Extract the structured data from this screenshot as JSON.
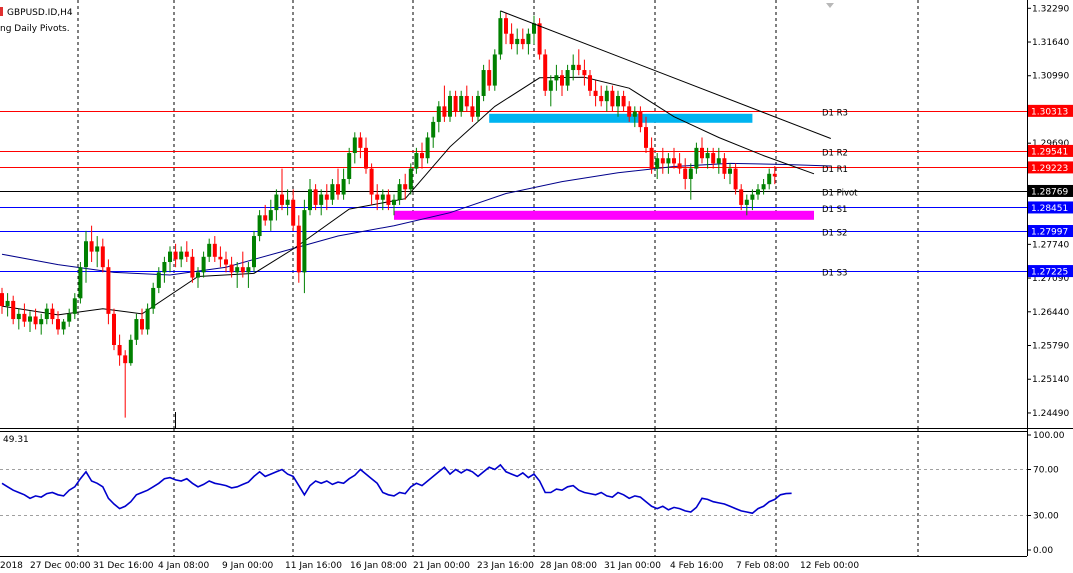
{
  "chart_data": {
    "type": "candlestick",
    "symbol_title": "GBPUSD.ID,H4",
    "indicator_title": "ng Daily Pivots.",
    "price_axis": {
      "ylim": [
        1.242,
        1.3245
      ],
      "ticks": [
        "1.32290",
        "1.31640",
        "1.30990",
        "1.30313",
        "1.29690",
        "1.29541",
        "1.29223",
        "1.28769",
        "1.28451",
        "1.27997",
        "1.27740",
        "1.27225",
        "1.27090",
        "1.26440",
        "1.25790",
        "1.25140",
        "1.24490"
      ]
    },
    "x_labels": [
      "2018",
      "27 Dec 00:00",
      "31 Dec 16:00",
      "4 Jan 08:00",
      "9 Jan 00:00",
      "11 Jan 16:00",
      "16 Jan 08:00",
      "21 Jan 00:00",
      "23 Jan 16:00",
      "28 Jan 08:00",
      "31 Jan 00:00",
      "4 Feb 16:00",
      "7 Feb 08:00",
      "12 Feb 00:00"
    ],
    "pivots": [
      {
        "name": "D1 R3",
        "value": 1.30313,
        "color": "#ff0000",
        "tag": "1.30313"
      },
      {
        "name": "D1 R2",
        "value": 1.29541,
        "color": "#ff0000",
        "tag": "1.29541"
      },
      {
        "name": "D1 R1",
        "value": 1.29223,
        "color": "#ff0000",
        "tag": "1.29223"
      },
      {
        "name": "D1 Pivot",
        "value": 1.28769,
        "color": "#000000",
        "tag": "1.28769"
      },
      {
        "name": "D1 S1",
        "value": 1.28451,
        "color": "#0000ff",
        "tag": "1.28451"
      },
      {
        "name": "D1 S2",
        "value": 1.27997,
        "color": "#0000ff",
        "tag": "1.27997"
      },
      {
        "name": "D1 S3",
        "value": 1.27225,
        "color": "#0000ff",
        "tag": "1.27225"
      }
    ],
    "zones": [
      {
        "name": "resistance-zone",
        "color": "#00b4f0",
        "price": 1.3017,
        "from_candle": 87,
        "to_candle": 134
      },
      {
        "name": "support-zone",
        "color": "#ff00ff",
        "price": 1.283,
        "from_candle": 70,
        "to_candle": 145
      }
    ],
    "trendline": {
      "from": {
        "candle": 89,
        "price": 1.3224
      },
      "to": {
        "candle": 148,
        "price": 1.2978
      }
    },
    "candles_ohlc": [
      [
        1.268,
        1.269,
        1.264,
        1.2655
      ],
      [
        1.2655,
        1.268,
        1.2635,
        1.2665
      ],
      [
        1.2665,
        1.2675,
        1.262,
        1.263
      ],
      [
        1.263,
        1.265,
        1.261,
        1.264
      ],
      [
        1.264,
        1.266,
        1.2615,
        1.2625
      ],
      [
        1.2625,
        1.2645,
        1.2605,
        1.2635
      ],
      [
        1.2635,
        1.265,
        1.261,
        1.262
      ],
      [
        1.262,
        1.264,
        1.26,
        1.263
      ],
      [
        1.263,
        1.266,
        1.262,
        1.265
      ],
      [
        1.265,
        1.266,
        1.262,
        1.263
      ],
      [
        1.263,
        1.2645,
        1.26,
        1.261
      ],
      [
        1.261,
        1.263,
        1.26,
        1.2625
      ],
      [
        1.2625,
        1.265,
        1.2615,
        1.264
      ],
      [
        1.264,
        1.268,
        1.263,
        1.267
      ],
      [
        1.267,
        1.274,
        1.266,
        1.273
      ],
      [
        1.273,
        1.28,
        1.27,
        1.278
      ],
      [
        1.278,
        1.281,
        1.274,
        1.276
      ],
      [
        1.276,
        1.279,
        1.273,
        1.277
      ],
      [
        1.277,
        1.2785,
        1.272,
        1.273
      ],
      [
        1.273,
        1.2745,
        1.262,
        1.264
      ],
      [
        1.264,
        1.265,
        1.257,
        1.258
      ],
      [
        1.258,
        1.26,
        1.254,
        1.256
      ],
      [
        1.256,
        1.257,
        1.244,
        1.2545
      ],
      [
        1.2545,
        1.26,
        1.254,
        1.259
      ],
      [
        1.259,
        1.264,
        1.258,
        1.263
      ],
      [
        1.263,
        1.265,
        1.26,
        1.261
      ],
      [
        1.261,
        1.266,
        1.26,
        1.265
      ],
      [
        1.265,
        1.27,
        1.264,
        1.269
      ],
      [
        1.269,
        1.273,
        1.268,
        1.272
      ],
      [
        1.272,
        1.275,
        1.27,
        1.274
      ],
      [
        1.274,
        1.277,
        1.272,
        1.276
      ],
      [
        1.276,
        1.2775,
        1.273,
        1.2745
      ],
      [
        1.2745,
        1.277,
        1.273,
        1.276
      ],
      [
        1.276,
        1.278,
        1.274,
        1.275
      ],
      [
        1.275,
        1.2765,
        1.27,
        1.271
      ],
      [
        1.271,
        1.273,
        1.269,
        1.272
      ],
      [
        1.272,
        1.276,
        1.271,
        1.275
      ],
      [
        1.275,
        1.2785,
        1.274,
        1.2775
      ],
      [
        1.2775,
        1.279,
        1.274,
        1.275
      ],
      [
        1.275,
        1.277,
        1.273,
        1.2745
      ],
      [
        1.2745,
        1.276,
        1.272,
        1.2735
      ],
      [
        1.2735,
        1.275,
        1.271,
        1.272
      ],
      [
        1.272,
        1.274,
        1.269,
        1.273
      ],
      [
        1.273,
        1.276,
        1.271,
        1.272
      ],
      [
        1.272,
        1.274,
        1.269,
        1.273
      ],
      [
        1.273,
        1.28,
        1.272,
        1.279
      ],
      [
        1.279,
        1.284,
        1.278,
        1.283
      ],
      [
        1.283,
        1.285,
        1.281,
        1.282
      ],
      [
        1.282,
        1.286,
        1.28,
        1.284
      ],
      [
        1.284,
        1.288,
        1.282,
        1.287
      ],
      [
        1.287,
        1.292,
        1.284,
        1.285
      ],
      [
        1.285,
        1.288,
        1.283,
        1.286
      ],
      [
        1.286,
        1.288,
        1.28,
        1.281
      ],
      [
        1.281,
        1.283,
        1.27,
        1.272
      ],
      [
        1.272,
        1.286,
        1.268,
        1.284
      ],
      [
        1.284,
        1.29,
        1.283,
        1.288
      ],
      [
        1.288,
        1.289,
        1.284,
        1.285
      ],
      [
        1.285,
        1.288,
        1.283,
        1.287
      ],
      [
        1.287,
        1.289,
        1.284,
        1.286
      ],
      [
        1.286,
        1.29,
        1.285,
        1.289
      ],
      [
        1.289,
        1.292,
        1.286,
        1.287
      ],
      [
        1.287,
        1.292,
        1.286,
        1.29
      ],
      [
        1.29,
        1.296,
        1.289,
        1.295
      ],
      [
        1.295,
        1.299,
        1.293,
        1.298
      ],
      [
        1.298,
        1.299,
        1.294,
        1.296
      ],
      [
        1.296,
        1.298,
        1.291,
        1.292
      ],
      [
        1.292,
        1.293,
        1.285,
        1.287
      ],
      [
        1.287,
        1.289,
        1.284,
        1.286
      ],
      [
        1.286,
        1.288,
        1.284,
        1.287
      ],
      [
        1.287,
        1.288,
        1.284,
        1.285
      ],
      [
        1.285,
        1.287,
        1.283,
        1.286
      ],
      [
        1.286,
        1.29,
        1.285,
        1.289
      ],
      [
        1.289,
        1.291,
        1.286,
        1.288
      ],
      [
        1.288,
        1.293,
        1.287,
        1.292
      ],
      [
        1.292,
        1.296,
        1.291,
        1.295
      ],
      [
        1.295,
        1.297,
        1.292,
        1.294
      ],
      [
        1.294,
        1.299,
        1.293,
        1.298
      ],
      [
        1.298,
        1.302,
        1.296,
        1.301
      ],
      [
        1.301,
        1.305,
        1.299,
        1.304
      ],
      [
        1.304,
        1.308,
        1.301,
        1.302
      ],
      [
        1.302,
        1.307,
        1.301,
        1.306
      ],
      [
        1.306,
        1.307,
        1.302,
        1.303
      ],
      [
        1.303,
        1.307,
        1.302,
        1.306
      ],
      [
        1.306,
        1.308,
        1.303,
        1.304
      ],
      [
        1.304,
        1.306,
        1.301,
        1.302
      ],
      [
        1.302,
        1.307,
        1.301,
        1.306
      ],
      [
        1.306,
        1.312,
        1.305,
        1.311
      ],
      [
        1.311,
        1.313,
        1.307,
        1.308
      ],
      [
        1.308,
        1.315,
        1.307,
        1.314
      ],
      [
        1.314,
        1.3224,
        1.313,
        1.321
      ],
      [
        1.321,
        1.322,
        1.316,
        1.318
      ],
      [
        1.318,
        1.32,
        1.315,
        1.316
      ],
      [
        1.316,
        1.319,
        1.314,
        1.317
      ],
      [
        1.317,
        1.319,
        1.315,
        1.316
      ],
      [
        1.316,
        1.319,
        1.314,
        1.318
      ],
      [
        1.318,
        1.3215,
        1.316,
        1.32
      ],
      [
        1.32,
        1.321,
        1.313,
        1.314
      ],
      [
        1.314,
        1.315,
        1.306,
        1.307
      ],
      [
        1.307,
        1.31,
        1.304,
        1.309
      ],
      [
        1.309,
        1.312,
        1.307,
        1.31
      ],
      [
        1.31,
        1.311,
        1.306,
        1.308
      ],
      [
        1.308,
        1.312,
        1.307,
        1.311
      ],
      [
        1.311,
        1.314,
        1.309,
        1.312
      ],
      [
        1.312,
        1.315,
        1.31,
        1.311
      ],
      [
        1.311,
        1.313,
        1.308,
        1.31
      ],
      [
        1.31,
        1.311,
        1.306,
        1.307
      ],
      [
        1.307,
        1.309,
        1.304,
        1.306
      ],
      [
        1.306,
        1.308,
        1.304,
        1.305
      ],
      [
        1.305,
        1.308,
        1.303,
        1.307
      ],
      [
        1.307,
        1.308,
        1.303,
        1.304
      ],
      [
        1.304,
        1.307,
        1.302,
        1.306
      ],
      [
        1.306,
        1.307,
        1.303,
        1.304
      ],
      [
        1.304,
        1.305,
        1.301,
        1.302
      ],
      [
        1.302,
        1.304,
        1.3,
        1.303
      ],
      [
        1.303,
        1.304,
        1.299,
        1.3
      ],
      [
        1.3,
        1.302,
        1.295,
        1.296
      ],
      [
        1.296,
        1.298,
        1.291,
        1.292
      ],
      [
        1.292,
        1.295,
        1.29,
        1.294
      ],
      [
        1.294,
        1.296,
        1.291,
        1.293
      ],
      [
        1.293,
        1.295,
        1.291,
        1.294
      ],
      [
        1.294,
        1.296,
        1.292,
        1.293
      ],
      [
        1.293,
        1.295,
        1.291,
        1.292
      ],
      [
        1.292,
        1.294,
        1.288,
        1.29
      ],
      [
        1.29,
        1.293,
        1.286,
        1.292
      ],
      [
        1.292,
        1.297,
        1.291,
        1.296
      ],
      [
        1.296,
        1.298,
        1.293,
        1.294
      ],
      [
        1.294,
        1.296,
        1.292,
        1.295
      ],
      [
        1.295,
        1.296,
        1.292,
        1.293
      ],
      [
        1.293,
        1.296,
        1.291,
        1.294
      ],
      [
        1.294,
        1.295,
        1.29,
        1.291
      ],
      [
        1.291,
        1.293,
        1.289,
        1.292
      ],
      [
        1.292,
        1.293,
        1.287,
        1.288
      ],
      [
        1.288,
        1.289,
        1.284,
        1.285
      ],
      [
        1.285,
        1.287,
        1.283,
        1.286
      ],
      [
        1.286,
        1.288,
        1.284,
        1.287
      ],
      [
        1.287,
        1.289,
        1.286,
        1.288
      ],
      [
        1.288,
        1.29,
        1.287,
        1.289
      ],
      [
        1.289,
        1.292,
        1.288,
        1.291
      ],
      [
        1.291,
        1.2925,
        1.289,
        1.2905
      ]
    ],
    "rsi": {
      "label": "49.31",
      "axis_ticks": [
        "100.00",
        "70.00",
        "30.00",
        "0.00"
      ],
      "levels": [
        70,
        30
      ],
      "values": [
        58,
        55,
        52,
        50,
        48,
        45,
        47,
        46,
        49,
        50,
        48,
        47,
        52,
        55,
        62,
        68,
        60,
        58,
        55,
        45,
        40,
        36,
        38,
        42,
        48,
        50,
        52,
        55,
        58,
        62,
        63,
        61,
        60,
        62,
        58,
        55,
        57,
        60,
        58,
        57,
        56,
        54,
        55,
        57,
        59,
        64,
        68,
        64,
        66,
        68,
        70,
        66,
        64,
        56,
        48,
        56,
        60,
        58,
        60,
        57,
        59,
        58,
        62,
        65,
        70,
        66,
        62,
        58,
        50,
        48,
        47,
        50,
        49,
        55,
        58,
        56,
        60,
        64,
        68,
        72,
        66,
        70,
        67,
        70,
        68,
        64,
        68,
        72,
        70,
        74,
        68,
        66,
        64,
        67,
        63,
        66,
        60,
        50,
        50,
        53,
        52,
        55,
        56,
        52,
        50,
        49,
        48,
        50,
        47,
        46,
        50,
        48,
        45,
        47,
        46,
        42,
        38,
        36,
        38,
        35,
        37,
        36,
        34,
        33,
        37,
        45,
        44,
        42,
        41,
        40,
        38,
        36,
        34,
        33,
        32,
        36,
        38,
        42,
        44,
        48,
        49,
        49.3
      ]
    },
    "ma_black_breakpoints": [
      [
        0,
        1.2655
      ],
      [
        10,
        1.2638
      ],
      [
        18,
        1.265
      ],
      [
        25,
        1.264
      ],
      [
        35,
        1.2712
      ],
      [
        45,
        1.2718
      ],
      [
        52,
        1.2765
      ],
      [
        62,
        1.2842
      ],
      [
        72,
        1.2862
      ],
      [
        80,
        1.2962
      ],
      [
        88,
        1.304
      ],
      [
        96,
        1.3095
      ],
      [
        104,
        1.3096
      ],
      [
        112,
        1.3075
      ],
      [
        120,
        1.302
      ],
      [
        128,
        1.298
      ],
      [
        136,
        1.2945
      ],
      [
        145,
        1.291
      ]
    ],
    "ma_blue_breakpoints": [
      [
        0,
        1.2755
      ],
      [
        10,
        1.2735
      ],
      [
        20,
        1.272
      ],
      [
        30,
        1.2715
      ],
      [
        40,
        1.273
      ],
      [
        50,
        1.276
      ],
      [
        60,
        1.279
      ],
      [
        70,
        1.281
      ],
      [
        80,
        1.2835
      ],
      [
        90,
        1.2872
      ],
      [
        100,
        1.2895
      ],
      [
        110,
        1.2912
      ],
      [
        120,
        1.2924
      ],
      [
        130,
        1.293
      ],
      [
        140,
        1.2928
      ],
      [
        148,
        1.2925
      ]
    ]
  }
}
